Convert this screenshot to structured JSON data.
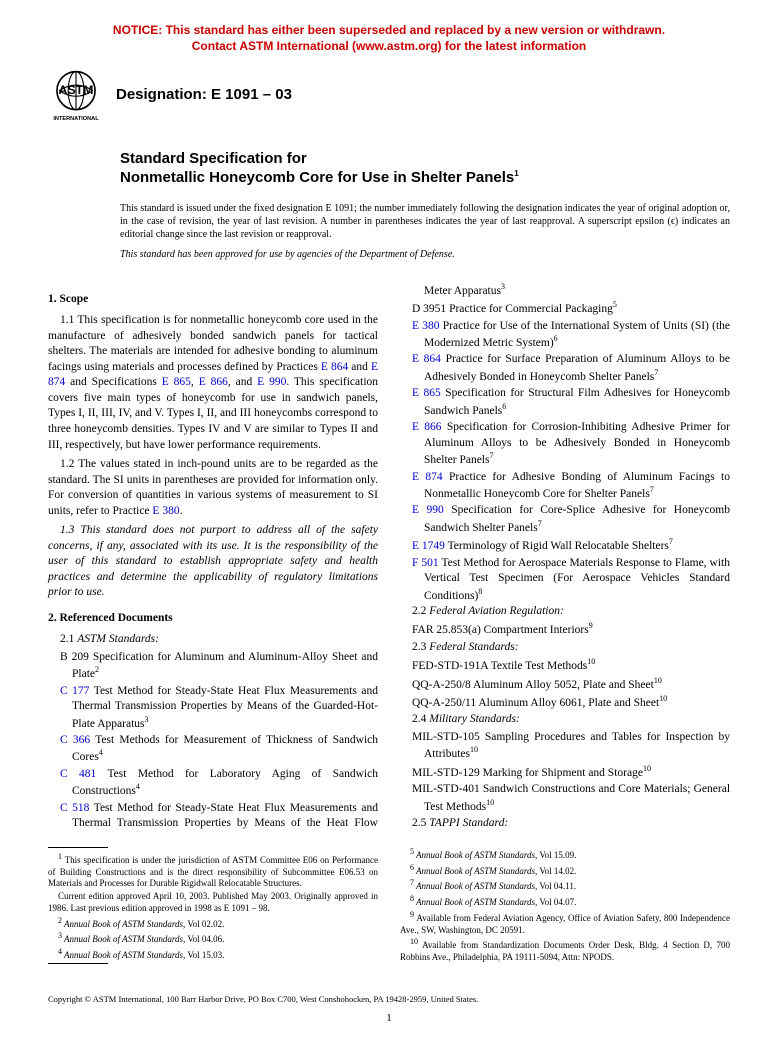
{
  "notice": {
    "line1": "NOTICE: This standard has either been superseded and replaced by a new version or withdrawn.",
    "line2": "Contact ASTM International (www.astm.org) for the latest information",
    "color": "#cc0000"
  },
  "logo": {
    "top_text": "ASTM",
    "bottom_text": "INTERNATIONAL",
    "stroke": "#000000"
  },
  "designation": "Designation: E 1091 – 03",
  "title": {
    "kicker": "Standard Specification for",
    "main": "Nonmetallic Honeycomb Core for Use in Shelter Panels",
    "super": "1"
  },
  "issuance": "This standard is issued under the fixed designation E 1091; the number immediately following the designation indicates the year of original adoption or, in the case of revision, the year of last revision. A number in parentheses indicates the year of last reapproval. A superscript epsilon (ϵ) indicates an editorial change since the last revision or reapproval.",
  "dod": "This standard has been approved for use by agencies of the Department of Defense.",
  "sections": {
    "scope": {
      "head": "1. Scope",
      "p1a": "1.1 This specification is for nonmetallic honeycomb core used in the manufacture of adhesively bonded sandwich panels for tactical shelters. The materials are intended for adhesive bonding to aluminum facings using materials and processes defined by Practices ",
      "p1_links": {
        "l1": "E 864",
        "l2": "E 874",
        "l3": "E 865",
        "l4": "E 866",
        "l5": "E 990"
      },
      "p1b": ". This specification covers five main types of honeycomb for use in sandwich panels, Types I, II, III, IV, and V. Types I, II, and III honeycombs correspond to three honeycomb densities. Types IV and V are similar to Types II and III, respectively, but have lower performance requirements.",
      "p2a": "1.2 The values stated in inch-pound units are to be regarded as the standard. The SI units in parentheses are provided for information only. For conversion of quantities in various systems of measurement to SI units, refer to Practice ",
      "p2_link": "E 380",
      "p2b": ".",
      "p3": "1.3 This standard does not purport to address all of the safety concerns, if any, associated with its use. It is the responsibility of the user of this standard to establish appropriate safety and health practices and determine the applicability of regulatory limitations prior to use."
    },
    "refs": {
      "head": "2. Referenced Documents",
      "g1": {
        "num": "2.1",
        "label": "ASTM Standards:"
      },
      "g2": {
        "num": "2.2",
        "label": "Federal Aviation Regulation:"
      },
      "g3": {
        "num": "2.3",
        "label": "Federal Standards:"
      },
      "g4": {
        "num": "2.4",
        "label": "Military Standards:"
      },
      "g5": {
        "num": "2.5",
        "label": "TAPPI Standard:"
      }
    }
  },
  "refs_astm": [
    {
      "code": "B 209",
      "text": "Specification for Aluminum and Aluminum-Alloy Sheet and Plate",
      "sup": "2",
      "link": false
    },
    {
      "code": "C 177",
      "text": "Test Method for Steady-State Heat Flux Measurements and Thermal Transmission Properties by Means of the Guarded-Hot-Plate Apparatus",
      "sup": "3",
      "link": true
    },
    {
      "code": "C 366",
      "text": "Test Methods for Measurement of Thickness of Sandwich Cores",
      "sup": "4",
      "link": true
    },
    {
      "code": "C 481",
      "text": "Test Method for Laboratory Aging of Sandwich Constructions",
      "sup": "4",
      "link": true
    },
    {
      "code": "C 518",
      "text": "Test Method for Steady-State Heat Flux Measurements and Thermal Transmission Properties by Means of the Heat Flow Meter Apparatus",
      "sup": "3",
      "link": true
    },
    {
      "code": "D 3951",
      "text": "Practice for Commercial Packaging",
      "sup": "5",
      "link": false
    },
    {
      "code": "E 380",
      "text": "Practice for Use of the International System of Units (SI) (the Modernized Metric System)",
      "sup": "6",
      "link": true
    },
    {
      "code": "E 864",
      "text": "Practice for Surface Preparation of Aluminum Alloys to be Adhesively Bonded in Honeycomb Shelter Panels",
      "sup": "7",
      "link": true
    },
    {
      "code": "E 865",
      "text": "Specification for Structural Film Adhesives for Honeycomb Sandwich Panels",
      "sup": "6",
      "link": true
    },
    {
      "code": "E 866",
      "text": "Specification for Corrosion-Inhibiting Adhesive Primer for Aluminum Alloys to be Adhesively Bonded in Honeycomb Shelter Panels",
      "sup": "7",
      "link": true
    },
    {
      "code": "E 874",
      "text": "Practice for Adhesive Bonding of Aluminum Facings to Nonmetallic Honeycomb Core for Shelter Panels",
      "sup": "7",
      "link": true
    },
    {
      "code": "E 990",
      "text": "Specification for Core-Splice Adhesive for Honeycomb Sandwich Shelter Panels",
      "sup": "7",
      "link": true
    },
    {
      "code": "E 1749",
      "text": "Terminology of Rigid Wall Relocatable Shelters",
      "sup": "7",
      "link": true
    },
    {
      "code": "F 501",
      "text": "Test Method for Aerospace Materials Response to Flame, with Vertical Test Specimen (For Aerospace Vehicles Standard Conditions)",
      "sup": "8",
      "link": true
    }
  ],
  "refs_far": [
    {
      "code": "FAR 25.853(a)",
      "text": "Compartment Interiors",
      "sup": "9"
    }
  ],
  "refs_fed": [
    {
      "code": "FED-STD-191A",
      "text": "Textile Test Methods",
      "sup": "10"
    },
    {
      "code": "QQ-A-250/8",
      "text": "Aluminum Alloy 5052, Plate and Sheet",
      "sup": "10"
    },
    {
      "code": "QQ-A-250/11",
      "text": "Aluminum Alloy 6061, Plate and Sheet",
      "sup": "10"
    }
  ],
  "refs_mil": [
    {
      "code": "MIL-STD-105",
      "text": "Sampling Procedures and Tables for Inspection by Attributes",
      "sup": "10"
    },
    {
      "code": "MIL-STD-129",
      "text": "Marking for Shipment and Storage",
      "sup": "10"
    },
    {
      "code": "MIL-STD-401",
      "text": "Sandwich Constructions and Core Materials; General Test Methods",
      "sup": "10"
    }
  ],
  "footnotes_left": [
    {
      "sup": "1",
      "text": "This specification is under the jurisdiction of ASTM Committee E06 on Performance of Building Constructions and is the direct responsibility of Subcommittee E06.53 on Materials and Processes for Durable Rigidwall Relocatable Structures."
    },
    {
      "sup": "",
      "text": "Current edition approved April 10, 2003. Published May 2003. Originally approved in 1986. Last previous edition approved in 1998 as E 1091 – 98."
    },
    {
      "sup": "2",
      "text": "Annual Book of ASTM Standards, Vol 02.02.",
      "ital": true
    },
    {
      "sup": "3",
      "text": "Annual Book of ASTM Standards, Vol 04.06.",
      "ital": true
    },
    {
      "sup": "4",
      "text": "Annual Book of ASTM Standards, Vol 15.03.",
      "ital": true
    }
  ],
  "footnotes_right": [
    {
      "sup": "5",
      "text": "Annual Book of ASTM Standards, Vol 15.09.",
      "ital": true
    },
    {
      "sup": "6",
      "text": "Annual Book of ASTM Standards, Vol 14.02.",
      "ital": true
    },
    {
      "sup": "7",
      "text": "Annual Book of ASTM Standards, Vol 04.11.",
      "ital": true
    },
    {
      "sup": "8",
      "text": "Annual Book of ASTM Standards, Vol 04.07.",
      "ital": true
    },
    {
      "sup": "9",
      "text": "Available from Federal Aviation Agency, Office of Aviation Safety, 800 Independence Ave., SW, Washington, DC 20591."
    },
    {
      "sup": "10",
      "text": "Available from Standardization Documents Order Desk, Bldg. 4 Section D, 700 Robbins Ave., Philadelphia, PA 19111-5094, Attn: NPODS."
    }
  ],
  "copyright": "Copyright © ASTM International, 100 Barr Harbor Drive, PO Box C700, West Conshohocken, PA 19428-2959, United States.",
  "pagenum": "1",
  "link_color": "#0000cc"
}
